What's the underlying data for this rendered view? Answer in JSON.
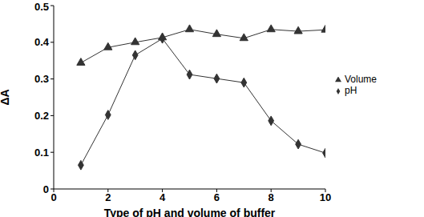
{
  "chart_data": {
    "type": "line",
    "x_label": "Type of pH and volume of buffer",
    "y_label": "ΔA",
    "x": [
      1,
      2,
      3,
      4,
      5,
      6,
      7,
      8,
      9,
      10
    ],
    "series": [
      {
        "name": "pH",
        "color": "#333333",
        "marker": "diamond",
        "values": [
          0.065,
          0.202,
          0.365,
          0.41,
          0.312,
          0.301,
          0.29,
          0.186,
          0.122,
          0.098
        ]
      },
      {
        "name": "Volume",
        "color": "#333333",
        "marker": "triangle",
        "values": [
          0.344,
          0.386,
          0.4,
          0.413,
          0.435,
          0.422,
          0.411,
          0.435,
          0.43,
          0.434
        ]
      }
    ],
    "xlim": [
      0,
      10
    ],
    "xticks": [
      0,
      2,
      4,
      6,
      8,
      10
    ],
    "ylim": [
      0,
      0.5
    ],
    "yticks": [
      0,
      0.1,
      0.2,
      0.3,
      0.4,
      0.5
    ],
    "grid": false,
    "legend": "right"
  }
}
